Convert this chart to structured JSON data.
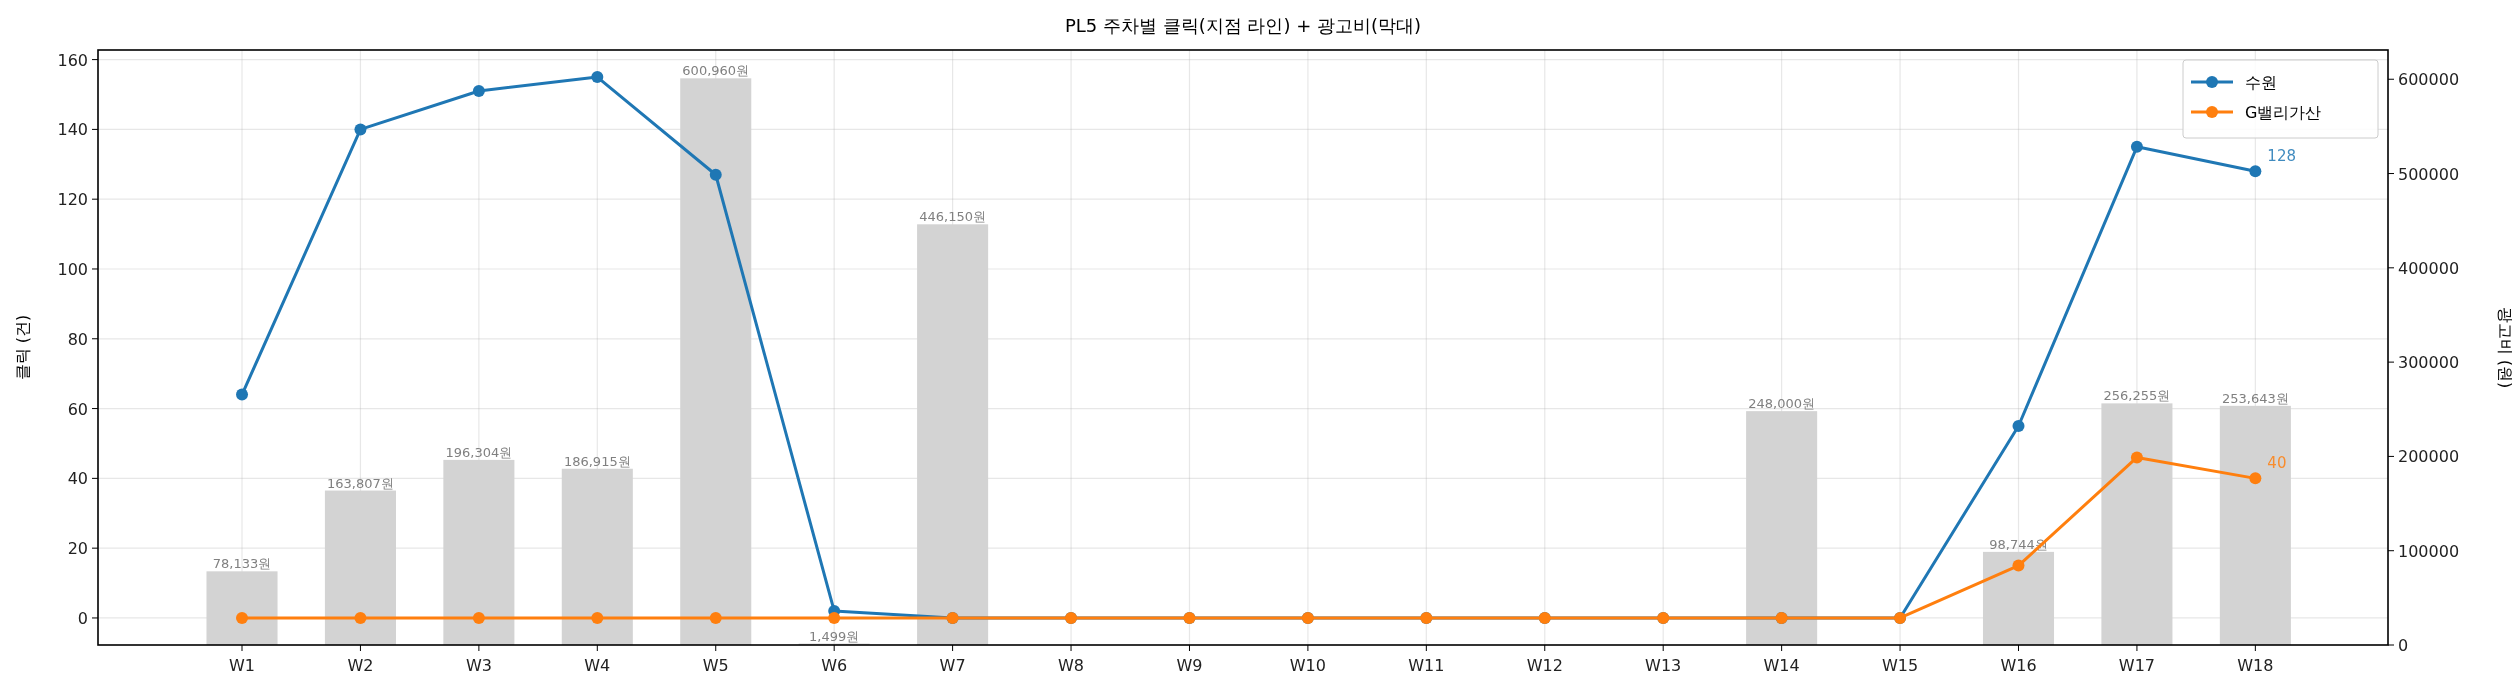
{
  "chart_data": {
    "type": "bar",
    "title": "PL5 주차별 클릭(지점 라인) + 광고비(막대)",
    "ylabel": "클릭 (건)",
    "y2label": "광고비 (원)",
    "categories": [
      "W1",
      "W2",
      "W3",
      "W4",
      "W5",
      "W6",
      "W7",
      "W8",
      "W9",
      "W10",
      "W11",
      "W12",
      "W13",
      "W14",
      "W15",
      "W16",
      "W17",
      "W18"
    ],
    "series": [
      {
        "axis": "y2",
        "color": "#d3d3d3",
        "values": [
          78133,
          163807,
          196304,
          186915,
          600960,
          1499,
          446150,
          0,
          0,
          0,
          0,
          0,
          0,
          248000,
          0,
          98744,
          256255,
          253643
        ],
        "value_labels": [
          "78,133원",
          "163,807원",
          "196,304원",
          "186,915원",
          "600,960원",
          "1,499원",
          "446,150원",
          null,
          null,
          null,
          null,
          null,
          null,
          "248,000원",
          null,
          "98,744원",
          "256,255원",
          "253,643원"
        ]
      },
      {
        "type": "line",
        "name": "수원",
        "color": "#1f77b4",
        "values": [
          64,
          140,
          151,
          155,
          127,
          2,
          0,
          0,
          0,
          0,
          0,
          0,
          0,
          0,
          0,
          55,
          135,
          128
        ],
        "value_labels": [
          null,
          null,
          null,
          null,
          null,
          null,
          null,
          null,
          null,
          null,
          null,
          null,
          null,
          null,
          null,
          null,
          null,
          "128"
        ]
      },
      {
        "type": "line",
        "name": "G밸리가산",
        "color": "#ff7f0e",
        "values": [
          0,
          0,
          0,
          0,
          0,
          0,
          0,
          0,
          0,
          0,
          0,
          0,
          0,
          0,
          0,
          15,
          46,
          40
        ],
        "value_labels": [
          null,
          null,
          null,
          null,
          null,
          null,
          null,
          null,
          null,
          null,
          null,
          null,
          null,
          null,
          null,
          null,
          null,
          "40"
        ]
      }
    ],
    "ylim": [
      -7.75,
      162.75
    ],
    "yticks": [
      0,
      20,
      40,
      60,
      80,
      100,
      120,
      140,
      160
    ],
    "y2lim": [
      0,
      631008
    ],
    "y2ticks": [
      0,
      100000,
      200000,
      300000,
      400000,
      500000,
      600000
    ],
    "grid": true,
    "legend": "top right",
    "marker": "circle",
    "line_style": "solid"
  }
}
